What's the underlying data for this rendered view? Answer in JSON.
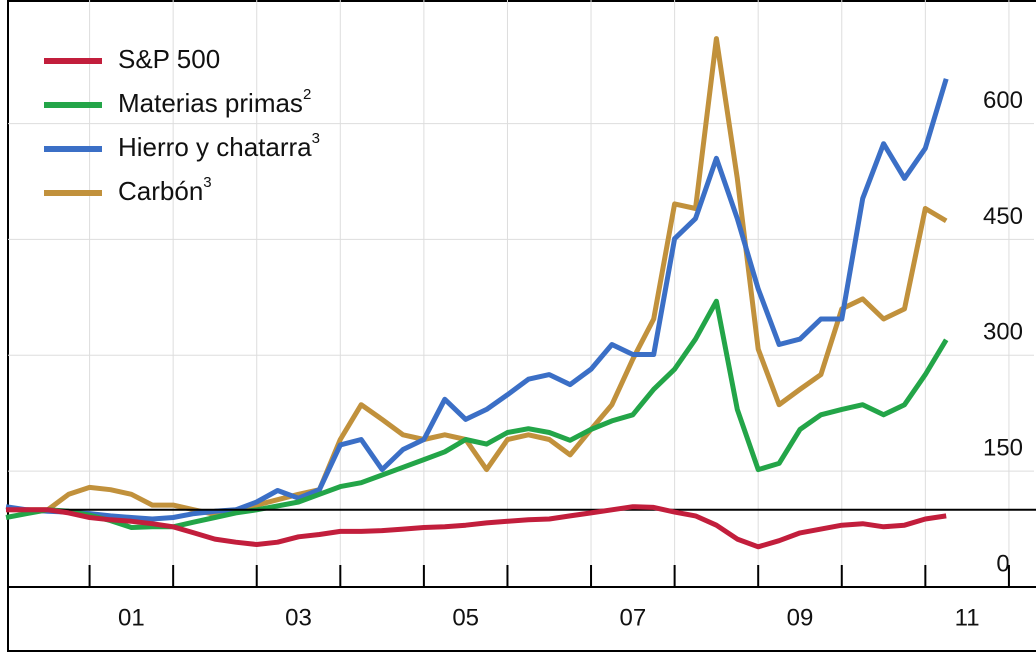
{
  "chart_data": {
    "type": "line",
    "x": [
      2000,
      2000.25,
      2000.5,
      2000.75,
      2001,
      2001.25,
      2001.5,
      2001.75,
      2002,
      2002.25,
      2002.5,
      2002.75,
      2003,
      2003.25,
      2003.5,
      2003.75,
      2004,
      2004.25,
      2004.5,
      2004.75,
      2005,
      2005.25,
      2005.5,
      2005.75,
      2006,
      2006.25,
      2006.5,
      2006.75,
      2007,
      2007.25,
      2007.5,
      2007.75,
      2008,
      2008.25,
      2008.5,
      2008.75,
      2009,
      2009.25,
      2009.5,
      2009.75,
      2010,
      2010.25,
      2010.5,
      2010.75,
      2011,
      2011.25
    ],
    "series": [
      {
        "name": "S&P 500",
        "color": "#c21e3c",
        "values": [
          100,
          100,
          100,
          96,
          90,
          87,
          85,
          82,
          78,
          70,
          62,
          58,
          55,
          58,
          65,
          68,
          72,
          72,
          73,
          75,
          77,
          78,
          80,
          83,
          85,
          87,
          88,
          92,
          96,
          100,
          104,
          103,
          97,
          92,
          80,
          62,
          52,
          60,
          70,
          75,
          80,
          82,
          78,
          80,
          88,
          92
        ]
      },
      {
        "name": "Materias primas",
        "footnote": "2",
        "color": "#23a548",
        "values": [
          90,
          95,
          100,
          98,
          93,
          86,
          77,
          78,
          78,
          84,
          90,
          96,
          100,
          105,
          110,
          120,
          130,
          135,
          145,
          155,
          165,
          175,
          191,
          185,
          200,
          205,
          200,
          190,
          204,
          215,
          223,
          256,
          282,
          321,
          370,
          230,
          152,
          160,
          204,
          223,
          230,
          236,
          223,
          236,
          275,
          320
        ]
      },
      {
        "name": "Hierro y chatarra",
        "footnote": "3",
        "color": "#3b6fc6",
        "values": [
          104,
          100,
          98,
          97,
          95,
          92,
          90,
          88,
          90,
          95,
          98,
          100,
          110,
          125,
          115,
          126,
          184,
          191,
          152,
          178,
          191,
          243,
          217,
          230,
          249,
          269,
          275,
          262,
          282,
          314,
          301,
          301,
          451,
          477,
          555,
          477,
          386,
          314,
          321,
          347,
          347,
          503,
          574,
          529,
          568,
          658
        ]
      },
      {
        "name": "Carbón",
        "footnote": "3",
        "color": "#c1913c",
        "values": [
          100,
          100,
          100,
          120,
          129,
          126,
          120,
          106,
          106,
          100,
          94,
          100,
          106,
          113,
          120,
          126,
          191,
          236,
          217,
          197,
          191,
          197,
          191,
          152,
          191,
          197,
          191,
          171,
          204,
          236,
          295,
          347,
          496,
          490,
          710,
          529,
          308,
          236,
          256,
          275,
          360,
          373,
          347,
          360,
          490,
          474
        ]
      }
    ],
    "xlim": [
      2000,
      2012.3
    ],
    "xticks": [
      {
        "value": 2001.5,
        "label": "01"
      },
      {
        "value": 2003.5,
        "label": "03"
      },
      {
        "value": 2005.5,
        "label": "05"
      },
      {
        "value": 2007.5,
        "label": "07"
      },
      {
        "value": 2009.5,
        "label": "09"
      },
      {
        "value": 2011.5,
        "label": "11"
      }
    ],
    "xminor": [
      2001,
      2002,
      2003,
      2004,
      2005,
      2006,
      2007,
      2008,
      2009,
      2010,
      2011,
      2012
    ],
    "ylim": [
      0,
      760
    ],
    "yticks": [
      0,
      150,
      300,
      450,
      600
    ],
    "reference_line": 100,
    "grid": true,
    "legend": "upper left"
  }
}
